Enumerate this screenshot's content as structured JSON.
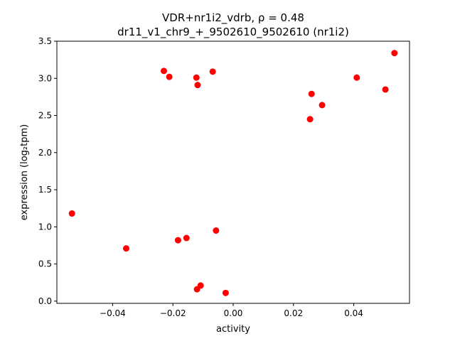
{
  "chart_data": {
    "type": "scatter",
    "title_line1": "VDR+nr1i2_vdrb, ρ = 0.48",
    "title_line2": "dr11_v1_chr9_+_9502610_9502610 (nr1i2)",
    "xlabel": "activity",
    "ylabel": "expression (log₂tpm)",
    "xlim": [
      -0.0585,
      0.0585
    ],
    "ylim": [
      -0.03,
      3.5
    ],
    "xticks": [
      -0.04,
      -0.02,
      0.0,
      0.02,
      0.04
    ],
    "xtick_labels": [
      "−0.04",
      "−0.02",
      "0.00",
      "0.02",
      "0.04"
    ],
    "yticks": [
      0.0,
      0.5,
      1.0,
      1.5,
      2.0,
      2.5,
      3.0,
      3.5
    ],
    "ytick_labels": [
      "0.0",
      "0.5",
      "1.0",
      "1.5",
      "2.0",
      "2.5",
      "3.0",
      "3.5"
    ],
    "grid": false,
    "marker_color": "#ff0000",
    "points": [
      {
        "x": -0.0535,
        "y": 1.18
      },
      {
        "x": -0.0355,
        "y": 0.71
      },
      {
        "x": -0.023,
        "y": 3.1
      },
      {
        "x": -0.0212,
        "y": 3.02
      },
      {
        "x": -0.0183,
        "y": 0.82
      },
      {
        "x": -0.0155,
        "y": 0.85
      },
      {
        "x": -0.0122,
        "y": 3.01
      },
      {
        "x": -0.0118,
        "y": 2.91
      },
      {
        "x": -0.012,
        "y": 0.16
      },
      {
        "x": -0.0108,
        "y": 0.21
      },
      {
        "x": -0.0068,
        "y": 3.09
      },
      {
        "x": -0.0057,
        "y": 0.95
      },
      {
        "x": -0.0025,
        "y": 0.11
      },
      {
        "x": 0.0255,
        "y": 2.45
      },
      {
        "x": 0.026,
        "y": 2.79
      },
      {
        "x": 0.0295,
        "y": 2.64
      },
      {
        "x": 0.041,
        "y": 3.01
      },
      {
        "x": 0.0505,
        "y": 2.85
      },
      {
        "x": 0.0535,
        "y": 3.34
      }
    ]
  }
}
